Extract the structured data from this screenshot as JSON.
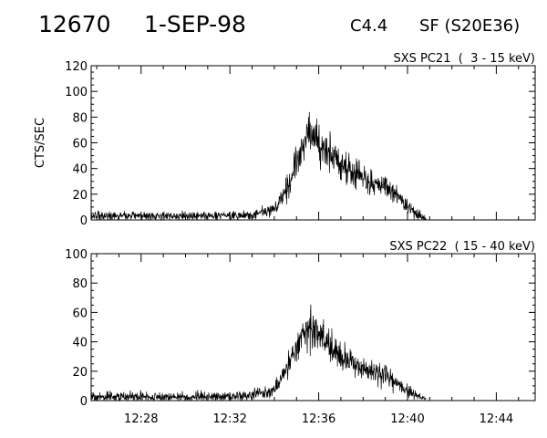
{
  "header": {
    "event_number": "12670",
    "date": "1-SEP-98",
    "flare_class": "C4.4",
    "location": "SF (S20E36)"
  },
  "chart_data": [
    {
      "type": "line",
      "series_label": "SXS PC21  (  3 - 15 keV)",
      "ylabel": "CTS/SEC",
      "ylim": [
        0,
        120
      ],
      "yticks": [
        0,
        20,
        40,
        60,
        80,
        100,
        120
      ],
      "xlim": [
        "12:25:45",
        "12:45:45"
      ],
      "xticks": [],
      "x_data_start": "12:25:45",
      "x_data_end": "12:40:50",
      "series": [
        {
          "x": [
            "12:26",
            "12:28",
            "12:30",
            "12:32",
            "12:33",
            "12:34",
            "12:34:30",
            "12:35",
            "12:35:20",
            "12:35:40",
            "12:36",
            "12:36:30",
            "12:37",
            "12:38",
            "12:39",
            "12:39:40",
            "12:40",
            "12:40:30",
            "12:40:50"
          ],
          "y": [
            3,
            3,
            3,
            3,
            4,
            8,
            22,
            45,
            60,
            68,
            60,
            52,
            42,
            33,
            25,
            18,
            10,
            4,
            1
          ]
        }
      ]
    },
    {
      "type": "line",
      "series_label": "SXS PC22  ( 15 - 40 keV)",
      "ylabel": "",
      "ylim": [
        0,
        100
      ],
      "yticks": [
        0,
        20,
        40,
        60,
        80,
        100
      ],
      "xlim": [
        "12:25:45",
        "12:45:45"
      ],
      "xticks": [
        "12:28",
        "12:32",
        "12:36",
        "12:40",
        "12:44"
      ],
      "x_data_start": "12:25:45",
      "x_data_end": "12:40:50",
      "series": [
        {
          "x": [
            "12:26",
            "12:28",
            "12:30",
            "12:32",
            "12:33",
            "12:34",
            "12:34:30",
            "12:35",
            "12:35:20",
            "12:35:40",
            "12:36",
            "12:36:30",
            "12:37",
            "12:38",
            "12:39",
            "12:39:40",
            "12:40",
            "12:40:30",
            "12:40:50"
          ],
          "y": [
            2.5,
            2.5,
            2.5,
            3,
            4,
            7,
            20,
            38,
            46,
            50,
            45,
            38,
            30,
            22,
            16,
            11,
            6,
            2.5,
            1
          ]
        }
      ]
    }
  ]
}
